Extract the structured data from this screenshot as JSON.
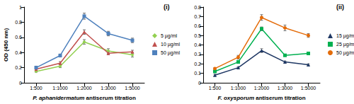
{
  "chart_data": [
    {
      "type": "line",
      "title": "(i)",
      "x_label": "P. aphanidermatum antiserum titration",
      "y_label": "OD (450 nm)",
      "categories": [
        "1:500",
        "1:1000",
        "1:2000",
        "1:3000",
        "1:5000"
      ],
      "ylim": [
        0,
        1
      ],
      "yticks": [
        0,
        0.2,
        0.4,
        0.6,
        0.8,
        1
      ],
      "grid": false,
      "legend": "right",
      "series": [
        {
          "name": "5 µg/ml",
          "color": "#92d050",
          "marker": "diamond",
          "values": [
            0.15,
            0.22,
            0.54,
            0.42,
            0.37
          ],
          "errors": [
            0.01,
            0.02,
            0.03,
            0.03,
            0.03
          ]
        },
        {
          "name": "10 µg/ml",
          "color": "#c0504d",
          "marker": "triangle",
          "values": [
            0.18,
            0.26,
            0.67,
            0.39,
            0.41
          ],
          "errors": [
            0.01,
            0.02,
            0.03,
            0.02,
            0.02
          ]
        },
        {
          "name": "50 µg/ml",
          "color": "#4f81bd",
          "marker": "square",
          "values": [
            0.2,
            0.36,
            0.88,
            0.65,
            0.56
          ],
          "errors": [
            0.02,
            0.02,
            0.04,
            0.03,
            0.03
          ]
        }
      ]
    },
    {
      "type": "line",
      "title": "(ii)",
      "x_label": "F. oxysporum antiserum titration",
      "categories": [
        "1:500",
        "1:1000",
        "1:2000",
        "1:3000",
        "1:5000"
      ],
      "ylim": [
        0,
        0.8
      ],
      "yticks": [
        0,
        0.1,
        0.2,
        0.3,
        0.4,
        0.5,
        0.6,
        0.7,
        0.8
      ],
      "grid": false,
      "legend": "right",
      "series": [
        {
          "name": "15 µg/ml",
          "color": "#1f3864",
          "marker": "triangle",
          "values": [
            0.08,
            0.16,
            0.34,
            0.22,
            0.19
          ],
          "errors": [
            0.01,
            0.01,
            0.02,
            0.01,
            0.01
          ]
        },
        {
          "name": "25 µg/ml",
          "color": "#00b050",
          "marker": "square",
          "values": [
            0.12,
            0.22,
            0.57,
            0.29,
            0.31
          ],
          "errors": [
            0.01,
            0.01,
            0.02,
            0.01,
            0.01
          ]
        },
        {
          "name": "50 µg/ml",
          "color": "#e46c0a",
          "marker": "circle",
          "values": [
            0.15,
            0.27,
            0.69,
            0.58,
            0.5
          ],
          "errors": [
            0.01,
            0.02,
            0.03,
            0.03,
            0.02
          ]
        }
      ]
    }
  ]
}
